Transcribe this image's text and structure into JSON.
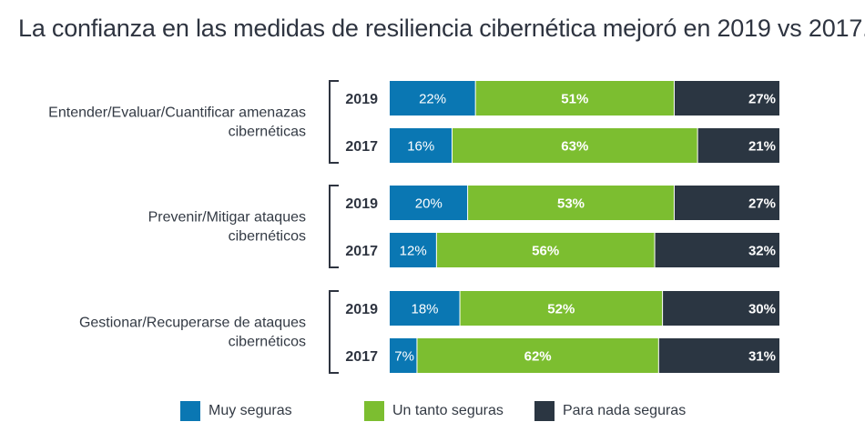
{
  "title": "La confianza en las medidas de resiliencia cibernética mejoró en 2019 vs 2017.",
  "colors": {
    "muy_seguras": "#0a77b3",
    "un_tanto_seguras": "#7cbe30",
    "para_nada_seguras": "#2b3642"
  },
  "legend": [
    {
      "label": "Muy seguras",
      "color_key": "muy_seguras"
    },
    {
      "label": "Un tanto seguras",
      "color_key": "un_tanto_seguras"
    },
    {
      "label": "Para nada seguras",
      "color_key": "para_nada_seguras"
    }
  ],
  "chart_data": {
    "type": "bar",
    "stacked": true,
    "orientation": "horizontal",
    "groups": [
      {
        "label_lines": [
          "Entender/Evaluar/Cuantificar amenazas",
          "cibernéticas"
        ],
        "bars": [
          {
            "year": "2019",
            "values": [
              22,
              51,
              27
            ]
          },
          {
            "year": "2017",
            "values": [
              16,
              63,
              21
            ]
          }
        ]
      },
      {
        "label_lines": [
          "Prevenir/Mitigar ataques",
          "cibernéticos"
        ],
        "bars": [
          {
            "year": "2019",
            "values": [
              20,
              53,
              27
            ]
          },
          {
            "year": "2017",
            "values": [
              12,
              56,
              32
            ]
          }
        ]
      },
      {
        "label_lines": [
          "Gestionar/Recuperarse de ataques",
          "cibernéticos"
        ],
        "bars": [
          {
            "year": "2019",
            "values": [
              18,
              52,
              30
            ]
          },
          {
            "year": "2017",
            "values": [
              7,
              62,
              31
            ]
          }
        ]
      }
    ],
    "series": [
      {
        "name": "Muy seguras"
      },
      {
        "name": "Un tanto seguras"
      },
      {
        "name": "Para nada seguras"
      }
    ],
    "value_suffix": "%",
    "xlim": [
      0,
      100
    ],
    "grid": false,
    "legend_position": "bottom"
  }
}
